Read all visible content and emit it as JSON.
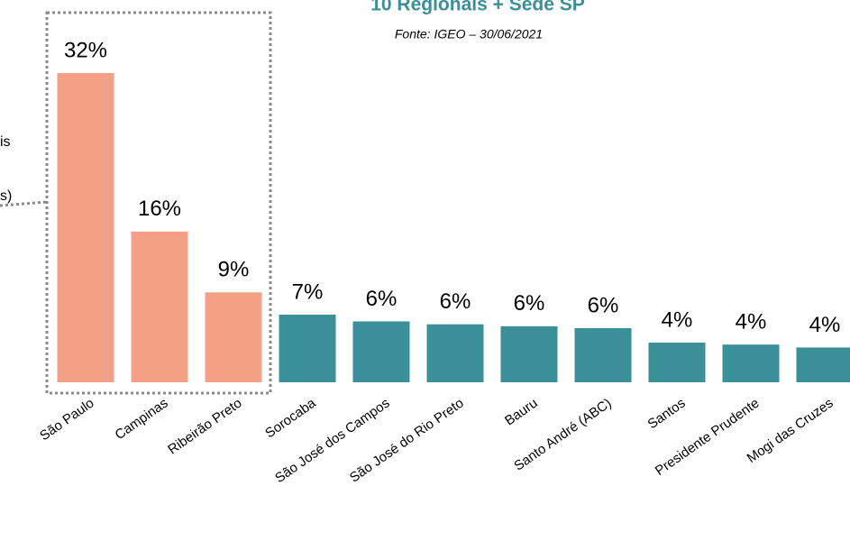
{
  "chart_data": {
    "type": "bar",
    "title": "10 Regionais + Sede SP",
    "subtitle": "Fonte: IGEO – 30/06/2021",
    "annotations": [
      "is",
      "s)"
    ],
    "categories": [
      "São Paulo",
      "Campinas",
      "Ribeirão Preto",
      "Sorocaba",
      "São José dos Campos",
      "São José do Rio Preto",
      "Bauru",
      "Santo André (ABC)",
      "Santos",
      "Presidente Prudente",
      "Mogi das Cruzes"
    ],
    "values": [
      32,
      15.6,
      9.3,
      7.0,
      6.3,
      6.0,
      5.8,
      5.6,
      4.1,
      3.9,
      3.6
    ],
    "value_labels": [
      "32%",
      "16%",
      "9%",
      "7%",
      "6%",
      "6%",
      "6%",
      "6%",
      "4%",
      "4%",
      "4%"
    ],
    "colors": [
      "#f4a086",
      "#f4a086",
      "#f4a086",
      "#3a8f98",
      "#3a8f98",
      "#3a8f98",
      "#3a8f98",
      "#3a8f98",
      "#3a8f98",
      "#3a8f98",
      "#3a8f98"
    ],
    "ylim": [
      0,
      32
    ]
  }
}
